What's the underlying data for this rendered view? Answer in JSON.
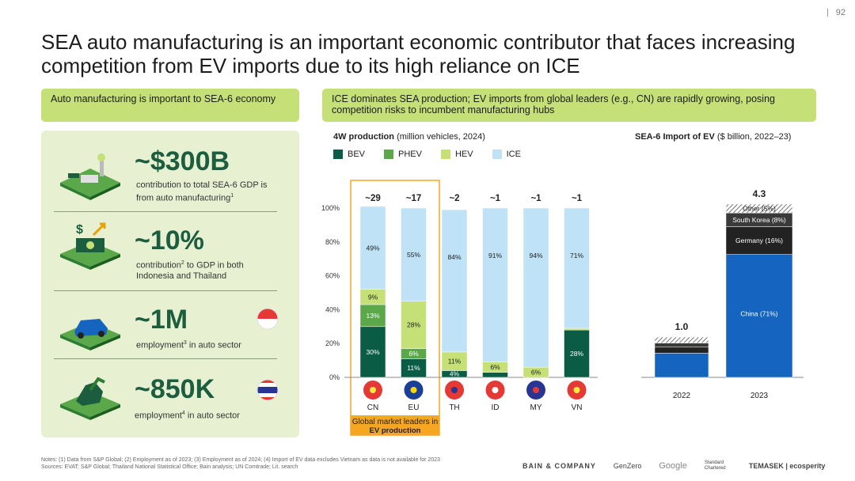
{
  "page_number": "92",
  "title": "SEA auto manufacturing is an important economic contributor that faces increasing competition from EV imports due to its high reliance on ICE",
  "left_banner": "Auto manufacturing is important to SEA-6 economy",
  "right_banner": "ICE dominates SEA production; EV imports from global leaders (e.g., CN) are rapidly growing, posing competition risks to incumbent manufacturing hubs",
  "kpis": [
    {
      "value": "~$300B",
      "desc": "contribution to total SEA-6 GDP is from auto manufacturing",
      "sup": "1",
      "icon": "factory-icon"
    },
    {
      "value": "~10%",
      "desc_pre": "contribution",
      "sup": "2",
      "desc_post": " to GDP in both Indonesia and Thailand",
      "icon": "money-growth-icon"
    },
    {
      "value": "~1M",
      "desc_pre": "employment",
      "sup": "3",
      "desc_post": " in auto sector",
      "flag": "indonesia-flag",
      "icon": "car-assembly-icon"
    },
    {
      "value": "~850K",
      "desc_pre": "employment",
      "sup": "4",
      "desc_post": " in auto sector",
      "flag": "thailand-flag",
      "icon": "robot-arm-icon"
    }
  ],
  "chart_data": [
    {
      "type": "bar",
      "title": "4W production",
      "title_suffix": "(million vehicles, 2024)",
      "categories": [
        "CN",
        "EU",
        "TH",
        "ID",
        "MY",
        "VN"
      ],
      "totals": [
        "~29",
        "~17",
        "~2",
        "~1",
        "~1",
        "~1"
      ],
      "y_ticks": [
        "0%",
        "20%",
        "40%",
        "60%",
        "80%",
        "100%"
      ],
      "ylim": [
        0,
        100
      ],
      "series": [
        {
          "name": "BEV",
          "color": "#0b5c45",
          "values": [
            30,
            11,
            4,
            3,
            0,
            28
          ],
          "labels": [
            "30%",
            "11%",
            "4%",
            "",
            "",
            "28%"
          ]
        },
        {
          "name": "PHEV",
          "color": "#5aa84a",
          "values": [
            13,
            6,
            0,
            0,
            0,
            0
          ],
          "labels": [
            "13%",
            "6%",
            "",
            "",
            "",
            ""
          ]
        },
        {
          "name": "HEV",
          "color": "#c4e077",
          "values": [
            9,
            28,
            11,
            6,
            6,
            1
          ],
          "labels": [
            "9%",
            "28%",
            "11%",
            "6%",
            "6%",
            ""
          ]
        },
        {
          "name": "ICE",
          "color": "#bfe2f7",
          "values": [
            49,
            55,
            84,
            91,
            94,
            71
          ],
          "labels": [
            "49%",
            "55%",
            "84%",
            "91%",
            "94%",
            "71%"
          ]
        }
      ],
      "highlight_label_line1": "Global market leaders in",
      "highlight_label_line2": "EV production"
    },
    {
      "type": "bar",
      "title": "SEA-6 Import of EV",
      "title_suffix": "($ billion, 2022–23)",
      "categories": [
        "2022",
        "2023"
      ],
      "totals": [
        "1.0",
        "4.3"
      ],
      "ylim": [
        0,
        4.3
      ],
      "series": [
        {
          "name": "China (71%)",
          "color": "#1565c0",
          "values": [
            0.6,
            3.05
          ],
          "labels": [
            "",
            "China (71%)"
          ]
        },
        {
          "name": "Germany (16%)",
          "color": "#222222",
          "values": [
            0.15,
            0.69
          ],
          "labels": [
            "",
            "Germany (16%)"
          ]
        },
        {
          "name": "South Korea (8%)",
          "color": "#3a3a3a",
          "values": [
            0.1,
            0.34
          ],
          "labels": [
            "",
            "South Korea (8%)"
          ]
        },
        {
          "name": "Other (5%)",
          "color": "#bbbbbb",
          "values": [
            0.15,
            0.22
          ],
          "labels": [
            "",
            "Other (5%)"
          ]
        }
      ]
    }
  ],
  "notes_line1": "Notes: (1) Data from S&P Global; (2) Employment as of 2023; (3) Employment as of 2024; (4) Import of EV data excludes Vietnam as data is not available for 2023",
  "notes_line2": "Sources: EVAT; S&P Global; Thailand National Statistical Office; Bain analysis; UN Comtrade; Lit. search",
  "logos": [
    "BAIN & COMPANY",
    "GenZero",
    "Google",
    "Standard Chartered",
    "TEMASEK | ecosperity"
  ]
}
